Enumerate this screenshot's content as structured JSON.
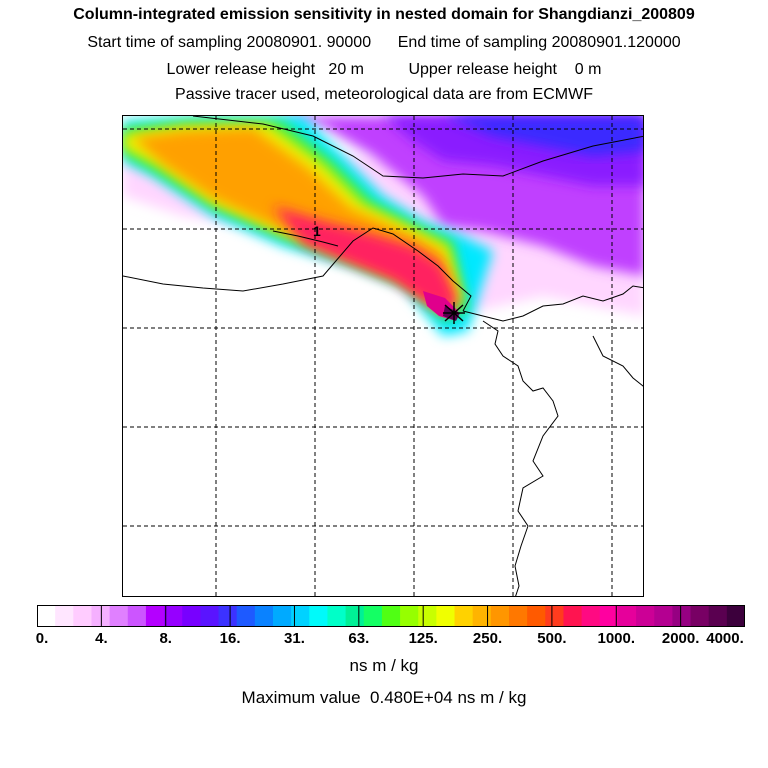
{
  "title": {
    "line1": "Column-integrated emission sensitivity in nested domain for Shangdianzi_200809",
    "line2": "Start time of sampling 20080901. 90000      End time of sampling 20080901.120000",
    "line3": "Lower release height   20 m          Upper release height    0 m",
    "line4": "Passive tracer used, meteorological data are from ECMWF"
  },
  "map": {
    "marker_label": "1"
  },
  "colorbar": {
    "ticks": [
      "0.",
      "4.",
      "8.",
      "16.",
      "31.",
      "63.",
      "125.",
      "250.",
      "500.",
      "1000.",
      "2000.",
      "4000."
    ],
    "colors": [
      "#ffffff",
      "#ffe6ff",
      "#ffccff",
      "#f5b0ff",
      "#e080ff",
      "#cc55ff",
      "#b400ff",
      "#9600ff",
      "#7800ff",
      "#5a14ff",
      "#3c32ff",
      "#1e5aff",
      "#0a82ff",
      "#00aaff",
      "#00d2ff",
      "#00fafa",
      "#00ffc8",
      "#00f096",
      "#14ff64",
      "#50ff14",
      "#96ff00",
      "#c8ff00",
      "#f0ff00",
      "#ffd200",
      "#ffb400",
      "#ff9600",
      "#ff7800",
      "#ff5a00",
      "#ff3c1e",
      "#ff1450",
      "#ff0a82",
      "#ff00a0",
      "#e6009b",
      "#cc0096",
      "#b40091",
      "#960082",
      "#780064",
      "#5a0050",
      "#3c003c"
    ],
    "unit": "ns m / kg"
  },
  "max_value_text": "Maximum value  0.480E+04 ns m / kg"
}
